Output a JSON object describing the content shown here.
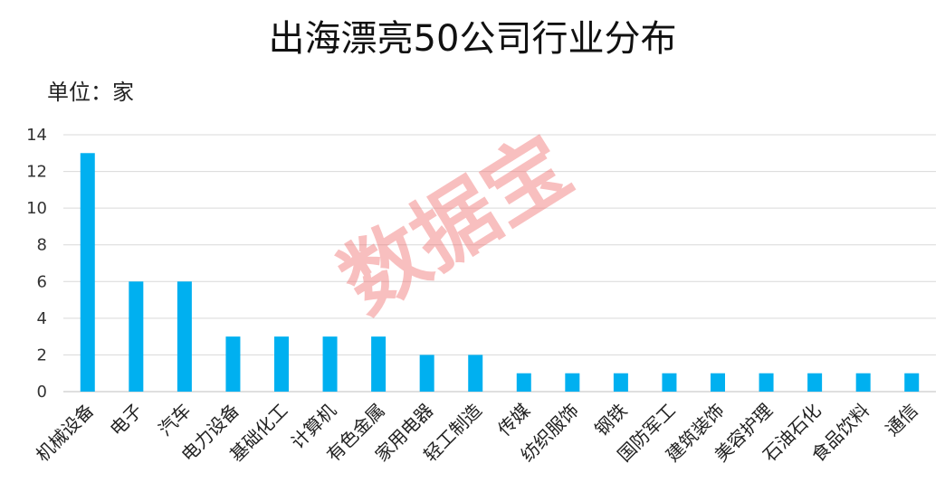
{
  "chart_data": {
    "type": "bar",
    "title": "出海漂亮50公司行业分布",
    "unit_label": "单位：家",
    "watermark": "数据宝",
    "categories": [
      "机械设备",
      "电子",
      "汽车",
      "电力设备",
      "基础化工",
      "计算机",
      "有色金属",
      "家用电器",
      "轻工制造",
      "传媒",
      "纺织服饰",
      "钢铁",
      "国防军工",
      "建筑装饰",
      "美容护理",
      "石油石化",
      "食品饮料",
      "通信"
    ],
    "values": [
      13,
      6,
      6,
      3,
      3,
      3,
      3,
      2,
      2,
      1,
      1,
      1,
      1,
      1,
      1,
      1,
      1,
      1
    ],
    "ylim": [
      0,
      14
    ],
    "yticks": [
      0,
      2,
      4,
      6,
      8,
      10,
      12,
      14
    ],
    "grid": true,
    "legend": "none",
    "bar_color": "#00b0f0"
  }
}
